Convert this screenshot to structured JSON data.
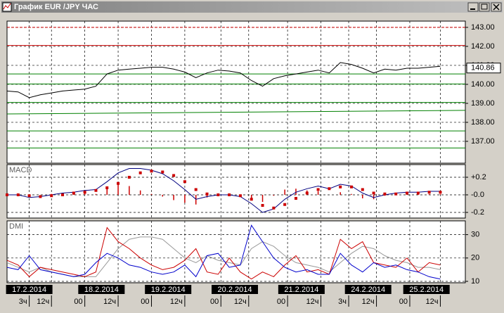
{
  "window_title": "График EUR /JPY  ЧАС",
  "time_axis": {
    "xlim": [
      0,
      165
    ],
    "date_ticks": [
      {
        "value": 8,
        "label": "17.2.2014"
      },
      {
        "value": 34,
        "label": "18.2.2014"
      },
      {
        "value": 58,
        "label": "19.2.2014"
      },
      {
        "value": 82,
        "label": "20.2.2014"
      },
      {
        "value": 106,
        "label": "21.2.2014"
      },
      {
        "value": 130,
        "label": "24.2.2014"
      },
      {
        "value": 151,
        "label": "25.2.2014"
      }
    ],
    "hour_ticks": [
      {
        "value": 8,
        "label": "3ч"
      },
      {
        "value": 16,
        "label": "12ч"
      },
      {
        "value": 28,
        "label": "00"
      },
      {
        "value": 40,
        "label": "12ч"
      },
      {
        "value": 52,
        "label": "00"
      },
      {
        "value": 64,
        "label": "12ч"
      },
      {
        "value": 77,
        "label": "00"
      },
      {
        "value": 87,
        "label": "12ч"
      },
      {
        "value": 101,
        "label": "00"
      },
      {
        "value": 113,
        "label": "12ч"
      },
      {
        "value": 123,
        "label": "3ч"
      },
      {
        "value": 133,
        "label": "12ч"
      },
      {
        "value": 145,
        "label": "00"
      },
      {
        "value": 156,
        "label": "12ч"
      }
    ]
  },
  "chart_data": [
    {
      "type": "line",
      "x": [
        0,
        4,
        8,
        12,
        16,
        20,
        24,
        28,
        32,
        36,
        40,
        44,
        48,
        52,
        56,
        60,
        64,
        68,
        72,
        76,
        80,
        84,
        88,
        92,
        96,
        100,
        104,
        108,
        112,
        116,
        120,
        124,
        128,
        132,
        136,
        140,
        144,
        148,
        152,
        156
      ],
      "series": [
        {
          "color": "#000000",
          "values": [
            139.65,
            139.6,
            139.3,
            139.45,
            139.55,
            139.65,
            139.7,
            139.75,
            139.9,
            140.55,
            140.75,
            140.8,
            140.85,
            140.9,
            140.9,
            140.8,
            140.65,
            140.35,
            140.6,
            140.75,
            140.7,
            140.6,
            140.2,
            139.9,
            140.3,
            140.45,
            140.55,
            140.65,
            140.75,
            140.6,
            141.15,
            141.05,
            140.85,
            140.6,
            140.8,
            140.75,
            140.85,
            140.85,
            140.9,
            140.95
          ]
        }
      ],
      "ylim": [
        135.85,
        143.33
      ],
      "yticks": [
        {
          "value": 143,
          "label": "143.00"
        },
        {
          "value": 142,
          "label": "142.00"
        },
        {
          "value": 141,
          "label": "141.00"
        },
        {
          "value": 140,
          "label": "140.00"
        },
        {
          "value": 139,
          "label": "139.00"
        },
        {
          "value": 138,
          "label": "138.00"
        },
        {
          "value": 137,
          "label": "137.00"
        }
      ],
      "grid": true,
      "last_price": 140.86,
      "levels": [
        {
          "value": 143.0,
          "color": "#cc0000"
        },
        {
          "value": 142.05,
          "color": "#cc0000"
        },
        {
          "value": 140.55,
          "color": "#008000"
        },
        {
          "value": 140.02,
          "color": "#008000"
        },
        {
          "value": 139.05,
          "color": "#008000"
        },
        {
          "value": 137.55,
          "color": "#008000"
        },
        {
          "value": 136.65,
          "color": "#008000"
        }
      ],
      "trendline": {
        "x": [
          0,
          165
        ],
        "values": [
          138.44,
          138.63
        ],
        "color": "#008000"
      }
    },
    {
      "type": "macd",
      "title": "MACD",
      "x": [
        0,
        4,
        8,
        12,
        16,
        20,
        24,
        28,
        32,
        36,
        40,
        44,
        48,
        52,
        56,
        60,
        64,
        68,
        72,
        76,
        80,
        84,
        88,
        92,
        96,
        100,
        104,
        108,
        112,
        116,
        120,
        124,
        128,
        132,
        136,
        140,
        144,
        148,
        152,
        156
      ],
      "series": [
        {
          "style": "bar",
          "color": "#cc0000",
          "values": [
            0,
            0,
            -0.02,
            0,
            0.01,
            0.02,
            0.01,
            0.02,
            0.01,
            0.07,
            0.12,
            0.1,
            0.05,
            0.01,
            -0.02,
            -0.06,
            -0.09,
            -0.11,
            -0.03,
            0,
            0,
            -0.01,
            -0.05,
            -0.08,
            -0.01,
            0.06,
            0.07,
            0.05,
            0.04,
            0,
            0.03,
            0.01,
            -0.04,
            -0.05,
            -0.01,
            0.01,
            0.01,
            0.01,
            0.01,
            0.01
          ]
        },
        {
          "style": "line",
          "color": "#000080",
          "values": [
            0,
            0,
            -0.03,
            -0.02,
            0,
            0.02,
            0.03,
            0.05,
            0.06,
            0.15,
            0.25,
            0.3,
            0.3,
            0.28,
            0.24,
            0.16,
            0.06,
            -0.05,
            -0.02,
            0,
            0,
            -0.02,
            -0.1,
            -0.2,
            -0.16,
            -0.05,
            0.03,
            0.07,
            0.1,
            0.07,
            0.12,
            0.1,
            0.02,
            -0.03,
            0,
            0.02,
            0.03,
            0.03,
            0.04,
            0.04
          ]
        },
        {
          "style": "dots",
          "color": "#cc0000",
          "values": [
            0,
            0,
            -0.01,
            -0.02,
            -0.01,
            0,
            0.02,
            0.03,
            0.05,
            0.08,
            0.13,
            0.2,
            0.25,
            0.27,
            0.26,
            0.22,
            0.15,
            0.06,
            0.01,
            0,
            0,
            -0.01,
            -0.05,
            -0.12,
            -0.15,
            -0.11,
            -0.04,
            0.02,
            0.06,
            0.07,
            0.09,
            0.09,
            0.06,
            0.02,
            0.01,
            0.01,
            0.02,
            0.02,
            0.03,
            0.03
          ]
        }
      ],
      "ylim": [
        -0.264,
        0.344
      ],
      "yticks": [
        {
          "value": 0.2,
          "label": "+0.2"
        },
        {
          "value": 0,
          "label": "-0.0"
        },
        {
          "value": -0.2,
          "label": "-0.2"
        }
      ],
      "grid": true
    },
    {
      "type": "line",
      "title": "DMI",
      "x": [
        0,
        4,
        8,
        12,
        16,
        20,
        24,
        28,
        32,
        36,
        40,
        44,
        48,
        52,
        56,
        60,
        64,
        68,
        72,
        76,
        80,
        84,
        88,
        92,
        96,
        100,
        104,
        108,
        112,
        116,
        120,
        124,
        128,
        132,
        136,
        140,
        144,
        148,
        152,
        156
      ],
      "series": [
        {
          "color": "#999999",
          "values": [
            18,
            16,
            14,
            16,
            14,
            13,
            12,
            12,
            12,
            18,
            24,
            28,
            29,
            29,
            28,
            24,
            20,
            18,
            21,
            19,
            18,
            17,
            24,
            27,
            25,
            21,
            18,
            17,
            16,
            14,
            18,
            22,
            25,
            24,
            21,
            19,
            18,
            16,
            16,
            15
          ]
        },
        {
          "color": "#cc0000",
          "values": [
            19,
            17,
            12,
            16,
            15,
            14,
            13,
            12,
            14,
            33,
            27,
            24,
            20,
            17,
            15,
            16,
            19,
            24,
            14,
            13,
            20,
            14,
            11,
            14,
            12,
            17,
            21,
            14,
            15,
            13,
            28,
            24,
            27,
            18,
            17,
            16,
            20,
            14,
            18,
            17
          ]
        },
        {
          "color": "#0000cc",
          "values": [
            16,
            15,
            21,
            15,
            14,
            13,
            12,
            13,
            18,
            22,
            20,
            17,
            16,
            14,
            13,
            14,
            17,
            12,
            21,
            22,
            16,
            17,
            34,
            27,
            20,
            16,
            14,
            15,
            13,
            13,
            22,
            17,
            14,
            18,
            16,
            17,
            15,
            14,
            12,
            11
          ]
        }
      ],
      "ylim": [
        9.4,
        35.9
      ],
      "yticks": [
        30,
        20,
        10
      ],
      "grid": true
    }
  ]
}
